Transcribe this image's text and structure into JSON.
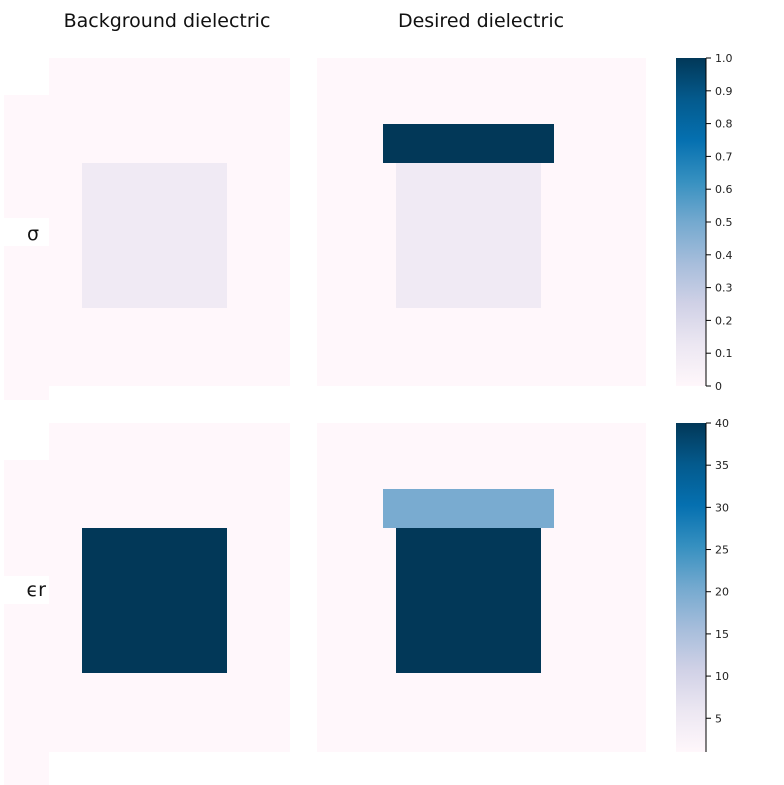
{
  "column_titles": [
    "Background dielectric",
    "Desired dielectric"
  ],
  "row_labels": [
    "σ",
    "ϵr"
  ],
  "colormap": {
    "name": "PuBu",
    "stops": [
      "#fff7fb",
      "#ece7f2",
      "#d0d1e6",
      "#a6bddb",
      "#74a9cf",
      "#3690c0",
      "#0570b0",
      "#045a8d",
      "#023858"
    ]
  },
  "chart_data": [
    {
      "type": "heatmap",
      "title": "Background dielectric",
      "row_label": "σ",
      "field_value": 0.0,
      "regions": [
        {
          "name": "square",
          "value": 0.1
        }
      ],
      "vlim": [
        0,
        1.0
      ]
    },
    {
      "type": "heatmap",
      "title": "Desired dielectric",
      "row_label": "σ",
      "field_value": 0.0,
      "regions": [
        {
          "name": "square",
          "value": 0.1
        },
        {
          "name": "top-bar",
          "value": 1.0
        }
      ],
      "vlim": [
        0,
        1.0
      ],
      "colorbar": {
        "ticks": [
          0,
          0.1,
          0.2,
          0.3,
          0.4,
          0.5,
          0.6,
          0.7,
          0.8,
          0.9,
          1.0
        ],
        "tick_labels": [
          "0",
          "0.1",
          "0.2",
          "0.3",
          "0.4",
          "0.5",
          "0.6",
          "0.7",
          "0.8",
          "0.9",
          "1.0"
        ]
      }
    },
    {
      "type": "heatmap",
      "title": "Background dielectric",
      "row_label": "ϵr",
      "field_value": 1,
      "regions": [
        {
          "name": "square",
          "value": 40
        }
      ],
      "vlim": [
        1,
        40
      ]
    },
    {
      "type": "heatmap",
      "title": "Desired dielectric",
      "row_label": "ϵr",
      "field_value": 1,
      "regions": [
        {
          "name": "square",
          "value": 40
        },
        {
          "name": "top-bar",
          "value": 20
        }
      ],
      "vlim": [
        1,
        40
      ],
      "colorbar": {
        "ticks": [
          5,
          10,
          15,
          20,
          25,
          30,
          35,
          40
        ],
        "tick_labels": [
          "5",
          "10",
          "15",
          "20",
          "25",
          "30",
          "35",
          "40"
        ]
      }
    }
  ]
}
